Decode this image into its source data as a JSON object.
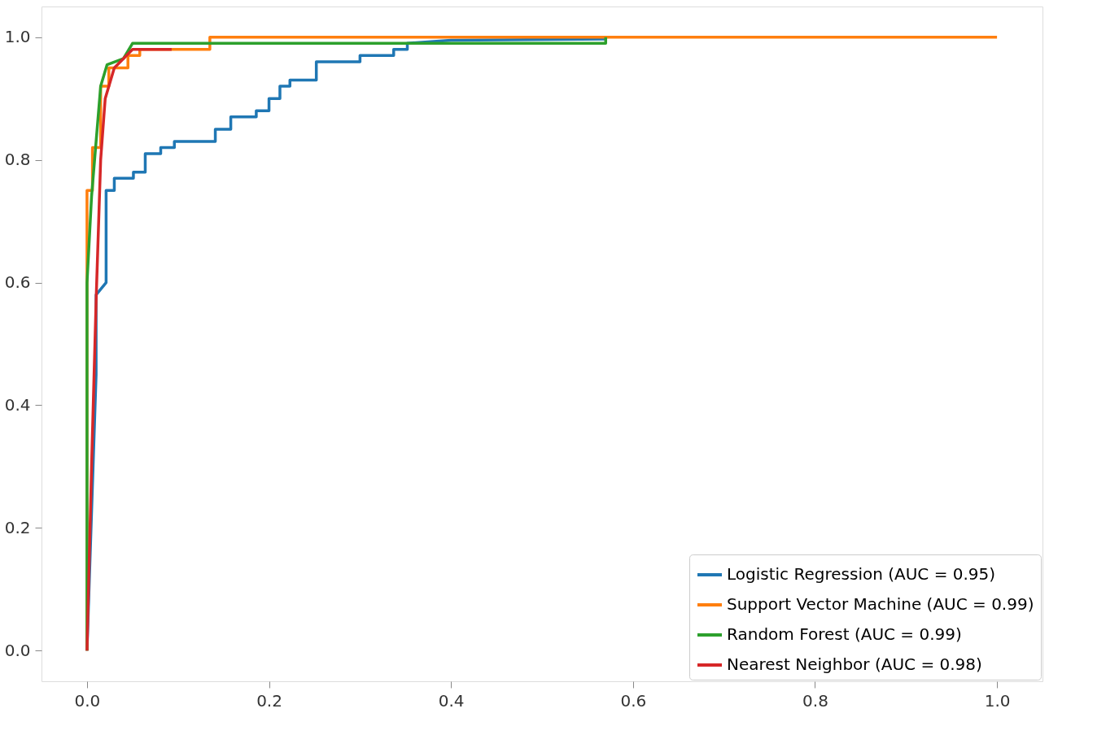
{
  "chart_data": {
    "type": "line",
    "xlim": [
      -0.05,
      1.05
    ],
    "ylim": [
      -0.05,
      1.05
    ],
    "xticks": [
      {
        "value": 0,
        "label": "0.0"
      },
      0.2,
      0.4,
      0.6,
      0.8,
      {
        "value": 1,
        "label": "1.0"
      }
    ],
    "yticks": [
      {
        "value": 0,
        "label": "0.0"
      },
      0.2,
      0.4,
      0.6,
      0.8,
      {
        "value": 1,
        "label": "1.0"
      }
    ],
    "grid": false,
    "legend": "bottom right",
    "line_style": "solid",
    "marker": "none",
    "series": [
      {
        "name": "Logistic Regression (AUC = 0.95)",
        "color": "#1f77b4",
        "x": [
          0,
          0.01,
          0.01,
          0.021,
          0.021,
          0.03,
          0.03,
          0.051,
          0.051,
          0.064,
          0.064,
          0.081,
          0.081,
          0.096,
          0.096,
          0.141,
          0.141,
          0.158,
          0.158,
          0.186,
          0.186,
          0.2,
          0.2,
          0.212,
          0.212,
          0.223,
          0.223,
          0.252,
          0.252,
          0.3,
          0.3,
          0.337,
          0.337,
          0.352,
          0.352,
          0.4,
          0.57
        ],
        "values": [
          0,
          0.45,
          0.58,
          0.6,
          0.75,
          0.75,
          0.77,
          0.77,
          0.78,
          0.78,
          0.81,
          0.81,
          0.82,
          0.82,
          0.83,
          0.83,
          0.85,
          0.85,
          0.87,
          0.87,
          0.88,
          0.88,
          0.9,
          0.9,
          0.92,
          0.92,
          0.93,
          0.93,
          0.96,
          0.96,
          0.97,
          0.97,
          0.98,
          0.98,
          0.99,
          0.995,
          0.997
        ]
      },
      {
        "name": "Support Vector Machine (AUC = 0.99)",
        "color": "#ff7f0e",
        "x": [
          0,
          0,
          0,
          0.006,
          0.006,
          0.015,
          0.015,
          0.024,
          0.024,
          0.045,
          0.045,
          0.058,
          0.058,
          0.135,
          0.135,
          1.0
        ],
        "values": [
          0,
          0.6,
          0.75,
          0.75,
          0.82,
          0.82,
          0.92,
          0.92,
          0.95,
          0.95,
          0.97,
          0.97,
          0.98,
          0.98,
          1.0,
          1.0
        ]
      },
      {
        "name": "Random Forest (AUC = 0.99)",
        "color": "#2ca02c",
        "x": [
          0,
          0,
          0.005,
          0.015,
          0.022,
          0.04,
          0.05,
          0.57,
          0.57
        ],
        "values": [
          0,
          0.6,
          0.74,
          0.92,
          0.955,
          0.965,
          0.99,
          0.99,
          1.0
        ]
      },
      {
        "name": "Nearest Neighbor (AUC = 0.98)",
        "color": "#d62728",
        "x": [
          0,
          0.005,
          0.01,
          0.015,
          0.02,
          0.03,
          0.05,
          0.093
        ],
        "values": [
          0,
          0.3,
          0.57,
          0.8,
          0.9,
          0.95,
          0.98,
          0.98
        ]
      }
    ]
  }
}
